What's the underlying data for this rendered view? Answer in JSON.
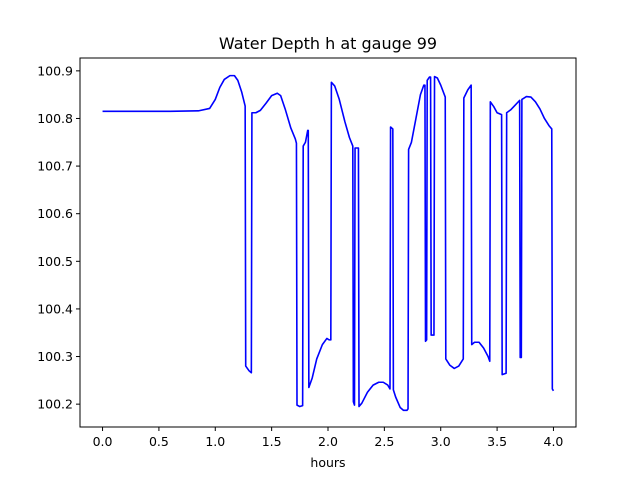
{
  "chart_data": {
    "type": "line",
    "title": "Water Depth h at gauge 99",
    "xlabel": "hours",
    "ylabel": "",
    "xlim": [
      -0.2,
      4.2
    ],
    "ylim": [
      100.152,
      100.927
    ],
    "x_ticks": [
      0.0,
      0.5,
      1.0,
      1.5,
      2.0,
      2.5,
      3.0,
      3.5,
      4.0
    ],
    "x_tick_labels": [
      "0.0",
      "0.5",
      "1.0",
      "1.5",
      "2.0",
      "2.5",
      "3.0",
      "3.5",
      "4.0"
    ],
    "y_ticks": [
      100.2,
      100.3,
      100.4,
      100.5,
      100.6,
      100.7,
      100.8,
      100.9
    ],
    "y_tick_labels": [
      "100.2",
      "100.3",
      "100.4",
      "100.5",
      "100.6",
      "100.7",
      "100.8",
      "100.9"
    ],
    "grid": false,
    "series": [
      {
        "name": "",
        "color": "#0000ff",
        "points": [
          [
            0.0,
            100.815
          ],
          [
            0.3,
            100.815
          ],
          [
            0.6,
            100.815
          ],
          [
            0.85,
            100.816
          ],
          [
            0.95,
            100.821
          ],
          [
            1.0,
            100.84
          ],
          [
            1.04,
            100.865
          ],
          [
            1.08,
            100.882
          ],
          [
            1.13,
            100.89
          ],
          [
            1.17,
            100.89
          ],
          [
            1.2,
            100.88
          ],
          [
            1.235,
            100.855
          ],
          [
            1.265,
            100.826
          ],
          [
            1.27,
            100.28
          ],
          [
            1.3,
            100.27
          ],
          [
            1.32,
            100.266
          ],
          [
            1.325,
            100.812
          ],
          [
            1.36,
            100.812
          ],
          [
            1.4,
            100.817
          ],
          [
            1.45,
            100.832
          ],
          [
            1.5,
            100.848
          ],
          [
            1.55,
            100.853
          ],
          [
            1.58,
            100.848
          ],
          [
            1.62,
            100.82
          ],
          [
            1.67,
            100.78
          ],
          [
            1.71,
            100.757
          ],
          [
            1.72,
            100.748
          ],
          [
            1.725,
            100.198
          ],
          [
            1.75,
            100.195
          ],
          [
            1.775,
            100.197
          ],
          [
            1.78,
            100.742
          ],
          [
            1.8,
            100.75
          ],
          [
            1.82,
            100.775
          ],
          [
            1.825,
            100.775
          ],
          [
            1.83,
            100.235
          ],
          [
            1.86,
            100.255
          ],
          [
            1.9,
            100.295
          ],
          [
            1.95,
            100.325
          ],
          [
            1.99,
            100.338
          ],
          [
            2.01,
            100.335
          ],
          [
            2.025,
            100.335
          ],
          [
            2.03,
            100.876
          ],
          [
            2.06,
            100.868
          ],
          [
            2.1,
            100.84
          ],
          [
            2.15,
            100.793
          ],
          [
            2.19,
            100.76
          ],
          [
            2.22,
            100.742
          ],
          [
            2.225,
            100.205
          ],
          [
            2.235,
            100.198
          ],
          [
            2.24,
            100.738
          ],
          [
            2.27,
            100.738
          ],
          [
            2.275,
            100.195
          ],
          [
            2.3,
            100.202
          ],
          [
            2.35,
            100.225
          ],
          [
            2.4,
            100.24
          ],
          [
            2.45,
            100.246
          ],
          [
            2.49,
            100.246
          ],
          [
            2.53,
            100.24
          ],
          [
            2.55,
            100.232
          ],
          [
            2.555,
            100.782
          ],
          [
            2.575,
            100.778
          ],
          [
            2.58,
            100.23
          ],
          [
            2.6,
            100.215
          ],
          [
            2.64,
            100.193
          ],
          [
            2.67,
            100.187
          ],
          [
            2.7,
            100.187
          ],
          [
            2.71,
            100.19
          ],
          [
            2.715,
            100.735
          ],
          [
            2.74,
            100.75
          ],
          [
            2.78,
            100.8
          ],
          [
            2.82,
            100.85
          ],
          [
            2.85,
            100.87
          ],
          [
            2.86,
            100.87
          ],
          [
            2.865,
            100.332
          ],
          [
            2.875,
            100.335
          ],
          [
            2.88,
            100.88
          ],
          [
            2.9,
            100.887
          ],
          [
            2.91,
            100.887
          ],
          [
            2.915,
            100.345
          ],
          [
            2.94,
            100.345
          ],
          [
            2.945,
            100.888
          ],
          [
            2.97,
            100.885
          ],
          [
            3.0,
            100.87
          ],
          [
            3.04,
            100.845
          ],
          [
            3.045,
            100.295
          ],
          [
            3.08,
            100.282
          ],
          [
            3.12,
            100.275
          ],
          [
            3.16,
            100.28
          ],
          [
            3.2,
            100.295
          ],
          [
            3.205,
            100.843
          ],
          [
            3.24,
            100.86
          ],
          [
            3.27,
            100.87
          ],
          [
            3.275,
            100.325
          ],
          [
            3.3,
            100.33
          ],
          [
            3.34,
            100.33
          ],
          [
            3.38,
            100.318
          ],
          [
            3.42,
            100.3
          ],
          [
            3.435,
            100.29
          ],
          [
            3.44,
            100.835
          ],
          [
            3.47,
            100.825
          ],
          [
            3.5,
            100.812
          ],
          [
            3.54,
            100.808
          ],
          [
            3.545,
            100.262
          ],
          [
            3.58,
            100.265
          ],
          [
            3.585,
            100.812
          ],
          [
            3.62,
            100.818
          ],
          [
            3.66,
            100.828
          ],
          [
            3.7,
            100.838
          ],
          [
            3.705,
            100.298
          ],
          [
            3.715,
            100.298
          ],
          [
            3.72,
            100.84
          ],
          [
            3.76,
            100.846
          ],
          [
            3.8,
            100.845
          ],
          [
            3.84,
            100.835
          ],
          [
            3.88,
            100.82
          ],
          [
            3.92,
            100.8
          ],
          [
            3.96,
            100.785
          ],
          [
            3.985,
            100.778
          ],
          [
            3.99,
            100.232
          ],
          [
            4.0,
            100.228
          ]
        ]
      }
    ]
  }
}
